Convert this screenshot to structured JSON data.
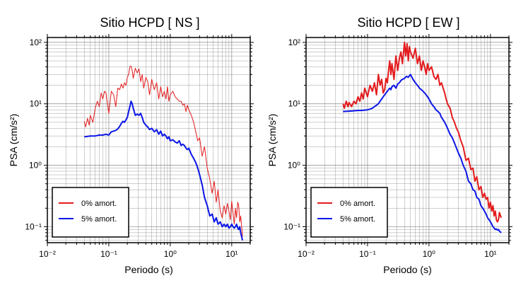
{
  "chart_data": [
    {
      "type": "line",
      "title": "Sitio HCPD [ NS ]",
      "xlabel": "Periodo (s)",
      "ylabel": "PSA (cm/s²)",
      "x_scale": "log",
      "y_scale": "log",
      "xlim": [
        0.01,
        20
      ],
      "ylim": [
        0.055,
        120
      ],
      "grid": true,
      "legend_position": "bottom-left",
      "x_ticks": [
        {
          "value": 0.01,
          "label": "10⁻²"
        },
        {
          "value": 0.1,
          "label": "10⁻¹"
        },
        {
          "value": 1,
          "label": "10⁰"
        },
        {
          "value": 10,
          "label": "10¹"
        }
      ],
      "y_ticks": [
        {
          "value": 0.1,
          "label": "10⁻¹"
        },
        {
          "value": 1,
          "label": "10⁰"
        },
        {
          "value": 10,
          "label": "10¹"
        },
        {
          "value": 100,
          "label": "10²"
        }
      ],
      "series": [
        {
          "name": "0% amort.",
          "color": "#e41a1c",
          "line_width": 1,
          "x": [
            0.04,
            0.042,
            0.045,
            0.048,
            0.05,
            0.055,
            0.06,
            0.065,
            0.07,
            0.075,
            0.08,
            0.085,
            0.09,
            0.1,
            0.11,
            0.12,
            0.13,
            0.14,
            0.15,
            0.16,
            0.17,
            0.18,
            0.19,
            0.2,
            0.21,
            0.22,
            0.23,
            0.24,
            0.25,
            0.27,
            0.29,
            0.31,
            0.33,
            0.35,
            0.37,
            0.4,
            0.43,
            0.46,
            0.5,
            0.55,
            0.6,
            0.65,
            0.7,
            0.75,
            0.8,
            0.85,
            0.9,
            0.95,
            1.0,
            1.1,
            1.2,
            1.3,
            1.4,
            1.5,
            1.6,
            1.7,
            1.8,
            1.9,
            2.0,
            2.2,
            2.4,
            2.6,
            2.8,
            3.0,
            3.3,
            3.6,
            4.0,
            4.4,
            4.8,
            5.2,
            5.6,
            6.0,
            6.5,
            7.0,
            7.5,
            8.0,
            8.5,
            9.0,
            9.5,
            10,
            10.5,
            11,
            11.5,
            12,
            12.5,
            13,
            13.5,
            14,
            15
          ],
          "y": [
            5.2,
            4.2,
            5.8,
            4.5,
            6.5,
            5.0,
            8.5,
            11,
            9.0,
            15,
            12,
            16,
            15,
            7,
            16,
            14,
            9,
            18,
            17,
            21,
            18,
            22,
            20,
            27,
            30,
            40,
            41,
            35,
            26,
            38,
            32,
            37,
            23,
            30,
            18,
            27,
            23,
            14,
            25,
            17,
            22,
            12,
            19,
            13,
            16,
            12,
            19,
            11,
            14,
            16,
            13,
            12,
            11,
            11,
            9.5,
            10,
            7.5,
            9.5,
            8,
            6.5,
            5,
            3.5,
            2.5,
            2.8,
            1.4,
            2.0,
            0.9,
            0.6,
            0.35,
            0.55,
            0.25,
            0.4,
            0.18,
            0.14,
            0.22,
            0.16,
            0.24,
            0.18,
            0.13,
            0.26,
            0.17,
            0.11,
            0.2,
            0.14,
            0.25,
            0.22,
            0.12,
            0.15,
            0.07
          ]
        },
        {
          "name": "5% amort.",
          "color": "#0b15e8",
          "line_width": 2,
          "x": [
            0.04,
            0.05,
            0.06,
            0.07,
            0.08,
            0.09,
            0.1,
            0.11,
            0.12,
            0.13,
            0.14,
            0.15,
            0.16,
            0.17,
            0.18,
            0.19,
            0.2,
            0.21,
            0.22,
            0.23,
            0.24,
            0.25,
            0.27,
            0.29,
            0.31,
            0.33,
            0.35,
            0.37,
            0.4,
            0.43,
            0.46,
            0.5,
            0.55,
            0.6,
            0.65,
            0.7,
            0.75,
            0.8,
            0.85,
            0.9,
            0.95,
            1.0,
            1.1,
            1.2,
            1.3,
            1.4,
            1.5,
            1.6,
            1.7,
            1.8,
            1.9,
            2.0,
            2.2,
            2.4,
            2.6,
            2.8,
            3.0,
            3.3,
            3.6,
            4.0,
            4.4,
            4.8,
            5.2,
            5.6,
            6.0,
            6.5,
            7.0,
            7.5,
            8.0,
            8.5,
            9.0,
            9.5,
            10,
            10.5,
            11,
            11.5,
            12,
            12.5,
            13,
            13.5,
            14,
            15
          ],
          "y": [
            2.9,
            3.0,
            3.0,
            3.1,
            3.1,
            3.2,
            3.1,
            3.5,
            3.6,
            3.7,
            3.9,
            4.3,
            4.8,
            5.2,
            5.0,
            5.5,
            6.0,
            7.5,
            9.0,
            11,
            10,
            8.5,
            6.5,
            6.8,
            6.5,
            7.0,
            6.0,
            5.0,
            4.5,
            4.2,
            3.8,
            4.0,
            3.5,
            3.8,
            3.2,
            3.6,
            3.0,
            3.2,
            3.0,
            2.7,
            2.9,
            2.5,
            2.6,
            2.4,
            2.3,
            2.5,
            2.1,
            2.2,
            2.1,
            1.9,
            1.8,
            1.9,
            1.5,
            1.3,
            1.1,
            0.9,
            0.7,
            0.48,
            0.3,
            0.22,
            0.15,
            0.16,
            0.12,
            0.14,
            0.11,
            0.12,
            0.1,
            0.11,
            0.1,
            0.11,
            0.095,
            0.1,
            0.11,
            0.1,
            0.095,
            0.1,
            0.11,
            0.095,
            0.09,
            0.1,
            0.08,
            0.06
          ]
        }
      ]
    },
    {
      "type": "line",
      "title": "Sitio HCPD [ EW ]",
      "xlabel": "Periodo (s)",
      "ylabel": "PSA (cm/s²)",
      "x_scale": "log",
      "y_scale": "log",
      "xlim": [
        0.01,
        20
      ],
      "ylim": [
        0.055,
        120
      ],
      "grid": true,
      "legend_position": "bottom-left",
      "x_ticks": [
        {
          "value": 0.01,
          "label": "10⁻²"
        },
        {
          "value": 0.1,
          "label": "10⁻¹"
        },
        {
          "value": 1,
          "label": "10⁰"
        },
        {
          "value": 10,
          "label": "10¹"
        }
      ],
      "y_ticks": [
        {
          "value": 0.1,
          "label": "10⁻¹"
        },
        {
          "value": 1,
          "label": "10⁰"
        },
        {
          "value": 10,
          "label": "10¹"
        },
        {
          "value": 100,
          "label": "10²"
        }
      ],
      "series": [
        {
          "name": "0% amort.",
          "color": "#e41a1c",
          "line_width": 2,
          "x": [
            0.04,
            0.042,
            0.045,
            0.048,
            0.05,
            0.055,
            0.06,
            0.065,
            0.07,
            0.075,
            0.08,
            0.085,
            0.09,
            0.1,
            0.11,
            0.12,
            0.13,
            0.14,
            0.15,
            0.16,
            0.17,
            0.18,
            0.19,
            0.2,
            0.21,
            0.22,
            0.23,
            0.24,
            0.25,
            0.27,
            0.29,
            0.31,
            0.33,
            0.35,
            0.37,
            0.4,
            0.42,
            0.44,
            0.46,
            0.48,
            0.5,
            0.55,
            0.6,
            0.65,
            0.7,
            0.75,
            0.8,
            0.85,
            0.9,
            0.95,
            1.0,
            1.1,
            1.2,
            1.3,
            1.4,
            1.5,
            1.6,
            1.7,
            1.8,
            1.9,
            2.0,
            2.2,
            2.4,
            2.6,
            2.8,
            3.0,
            3.3,
            3.6,
            4.0,
            4.4,
            4.8,
            5.2,
            5.6,
            6.0,
            6.5,
            7.0,
            7.5,
            8.0,
            8.5,
            9.0,
            9.5,
            10,
            10.5,
            11,
            11.5,
            12,
            12.5,
            13,
            13.5,
            14,
            15
          ],
          "y": [
            10,
            8.5,
            11,
            9.0,
            10.5,
            9.0,
            11,
            10,
            13,
            11,
            15,
            12,
            18,
            13,
            20,
            16,
            22,
            14,
            30,
            20,
            25,
            15,
            17,
            26,
            22,
            35,
            50,
            30,
            45,
            25,
            60,
            35,
            55,
            70,
            45,
            100,
            60,
            95,
            50,
            85,
            70,
            55,
            80,
            45,
            60,
            35,
            50,
            40,
            30,
            45,
            35,
            40,
            28,
            25,
            30,
            20,
            22,
            18,
            15,
            12,
            10,
            8.5,
            6,
            5,
            4,
            3.5,
            2.5,
            2.0,
            1.2,
            1.3,
            0.85,
            0.9,
            0.55,
            0.65,
            0.4,
            0.45,
            0.3,
            0.35,
            0.28,
            0.3,
            0.2,
            0.25,
            0.18,
            0.22,
            0.15,
            0.18,
            0.13,
            0.12,
            0.13,
            0.17,
            0.14
          ]
        },
        {
          "name": "5% amort.",
          "color": "#0b15e8",
          "line_width": 2,
          "x": [
            0.04,
            0.05,
            0.06,
            0.07,
            0.08,
            0.09,
            0.1,
            0.11,
            0.12,
            0.13,
            0.14,
            0.15,
            0.16,
            0.17,
            0.18,
            0.19,
            0.2,
            0.21,
            0.22,
            0.23,
            0.24,
            0.25,
            0.27,
            0.29,
            0.31,
            0.33,
            0.35,
            0.37,
            0.4,
            0.43,
            0.46,
            0.5,
            0.55,
            0.6,
            0.65,
            0.7,
            0.75,
            0.8,
            0.85,
            0.9,
            0.95,
            1.0,
            1.1,
            1.2,
            1.3,
            1.4,
            1.5,
            1.6,
            1.7,
            1.8,
            1.9,
            2.0,
            2.2,
            2.4,
            2.6,
            2.8,
            3.0,
            3.3,
            3.6,
            4.0,
            4.4,
            4.8,
            5.2,
            5.6,
            6.0,
            6.5,
            7.0,
            7.5,
            8.0,
            8.5,
            9.0,
            9.5,
            10,
            10.5,
            11,
            11.5,
            12,
            12.5,
            13,
            13.5,
            14,
            15
          ],
          "y": [
            7.5,
            7.6,
            7.7,
            7.8,
            7.8,
            7.9,
            8.0,
            8.2,
            8.5,
            9.0,
            9.5,
            10,
            11,
            12,
            13,
            14,
            15,
            16,
            17,
            18,
            17,
            19,
            20,
            18,
            21,
            22,
            24,
            25,
            26,
            28,
            27,
            30,
            25,
            22,
            20,
            18,
            17,
            16,
            15,
            14,
            13,
            12,
            10,
            9,
            8,
            7.5,
            7,
            6,
            5.5,
            5,
            4.5,
            4,
            3.2,
            2.8,
            2.3,
            1.9,
            1.6,
            1.3,
            1.0,
            0.8,
            0.55,
            0.5,
            0.4,
            0.38,
            0.3,
            0.28,
            0.22,
            0.2,
            0.18,
            0.16,
            0.14,
            0.13,
            0.12,
            0.11,
            0.1,
            0.095,
            0.09,
            0.092,
            0.088,
            0.09,
            0.085,
            0.08
          ]
        }
      ]
    }
  ]
}
